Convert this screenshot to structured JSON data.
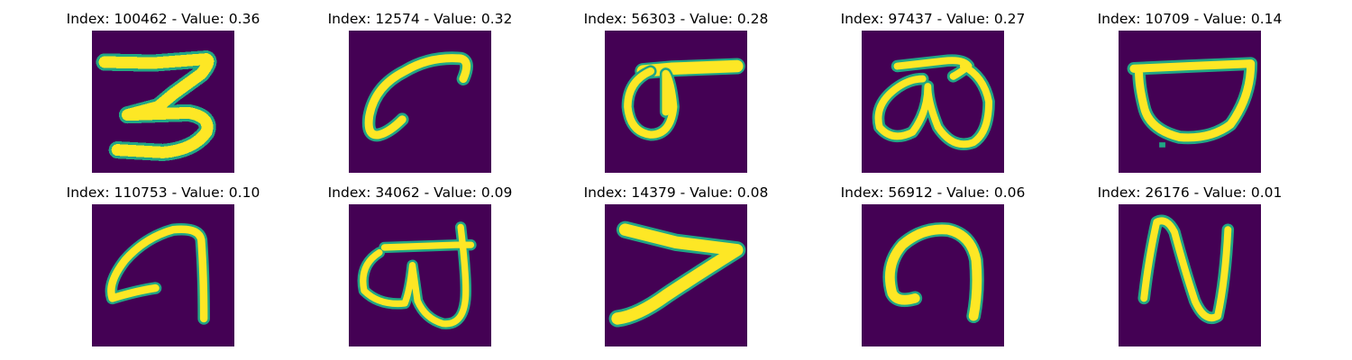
{
  "panels": [
    {
      "index_label": "Index: 100462 - Value: 0.36",
      "glyph": "handwritten-three"
    },
    {
      "index_label": "Index: 12574 - Value: 0.32",
      "glyph": "handwritten-six-like"
    },
    {
      "index_label": "Index: 56303 - Value: 0.28",
      "glyph": "handwritten-loop-with-bar"
    },
    {
      "index_label": "Index: 97437 - Value: 0.27",
      "glyph": "handwritten-double-loop"
    },
    {
      "index_label": "Index: 10709 - Value: 0.14",
      "glyph": "handwritten-bowl"
    },
    {
      "index_label": "Index: 110753 - Value: 0.10",
      "glyph": "handwritten-hook"
    },
    {
      "index_label": "Index: 34062 - Value: 0.09",
      "glyph": "handwritten-loop-with-hook"
    },
    {
      "index_label": "Index: 14379 - Value: 0.08",
      "glyph": "handwritten-seven-like"
    },
    {
      "index_label": "Index: 56912 - Value: 0.06",
      "glyph": "handwritten-n-hook"
    },
    {
      "index_label": "Index: 26176 - Value: 0.01",
      "glyph": "handwritten-n-like"
    }
  ],
  "colors": {
    "background": "#440154",
    "edge": "#21a685",
    "mid": "#7ad151",
    "stroke": "#fde725"
  }
}
